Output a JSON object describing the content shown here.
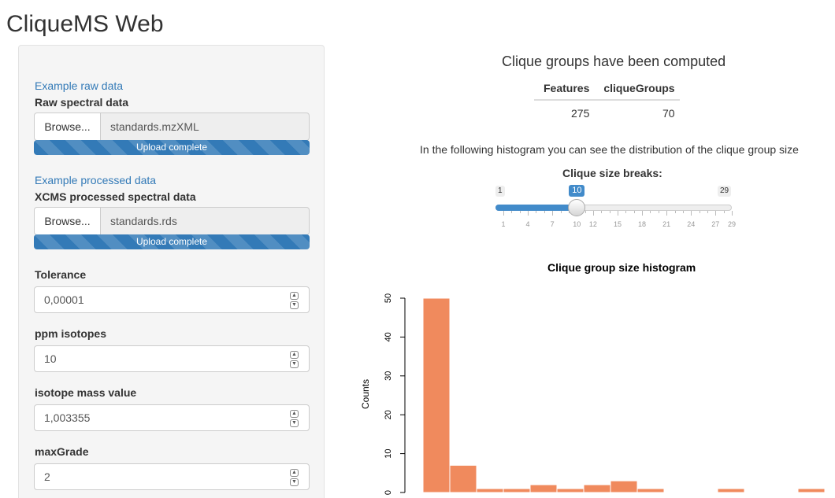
{
  "app": {
    "title": "CliqueMS Web"
  },
  "sidebar": {
    "raw": {
      "example_link": "Example raw data",
      "label": "Raw spectral data",
      "browse_label": "Browse...",
      "file_name": "standards.mzXML",
      "progress_text": "Upload complete",
      "progress": 1.0
    },
    "processed": {
      "example_link": "Example processed data",
      "label": "XCMS processed spectral data",
      "browse_label": "Browse...",
      "file_name": "standards.rds",
      "progress_text": "Upload complete",
      "progress": 1.0
    },
    "inputs": [
      {
        "label": "Tolerance",
        "value": "0,00001"
      },
      {
        "label": "ppm isotopes",
        "value": "10"
      },
      {
        "label": "isotope mass value",
        "value": "1,003355"
      },
      {
        "label": "maxGrade",
        "value": "2"
      }
    ]
  },
  "main": {
    "heading": "Clique groups have been computed",
    "table": {
      "headers": [
        "Features",
        "cliqueGroups"
      ],
      "row": [
        "275",
        "70"
      ]
    },
    "subtitle": "In the following histogram you can see the distribution of the clique group size",
    "slider": {
      "label": "Clique size breaks:",
      "min": 1,
      "max": 29,
      "value": 10,
      "min_label": "1",
      "max_label": "29",
      "value_label": "10",
      "tick_labels": [
        "1",
        "4",
        "7",
        "10",
        "12",
        "15",
        "18",
        "21",
        "24",
        "27",
        "29"
      ]
    }
  },
  "chart_data": {
    "type": "bar",
    "title": "Clique group size histogram",
    "ylabel": "Counts",
    "xlabel": "",
    "ylim": [
      0,
      50
    ],
    "yticks": [
      "0",
      "10",
      "20",
      "30",
      "40",
      "50"
    ],
    "values": [
      50,
      7,
      1,
      1,
      2,
      1,
      2,
      3,
      1,
      0,
      0,
      1,
      0,
      0,
      1
    ],
    "bar_color": "#f08a5d"
  },
  "colors": {
    "accent": "#337ab7",
    "slider": "#428bca",
    "bar": "#f08a5d"
  }
}
